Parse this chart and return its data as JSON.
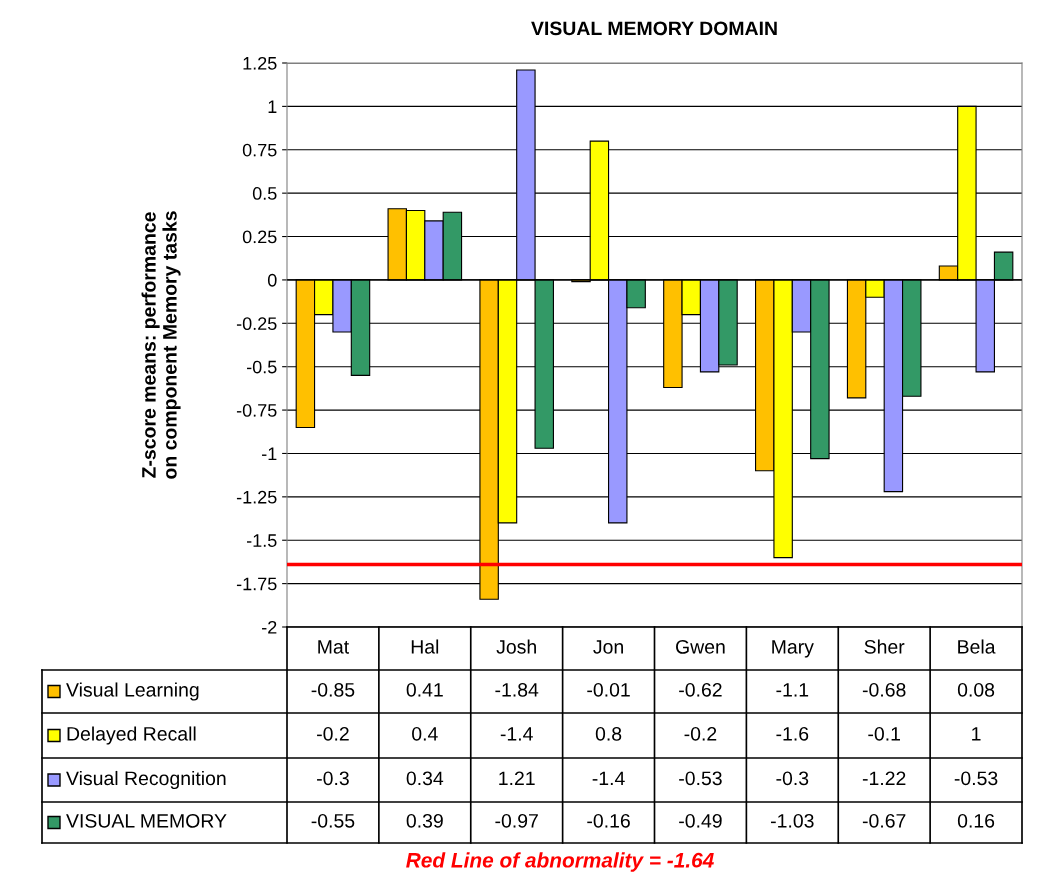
{
  "chart_data": {
    "type": "bar",
    "title": "VISUAL MEMORY DOMAIN",
    "ylabel": "Z-score means: performance\non component Memory tasks",
    "categories": [
      "Mat",
      "Hal",
      "Josh",
      "Jon",
      "Gwen",
      "Mary",
      "Sher",
      "Bela"
    ],
    "series": [
      {
        "name": "Visual Learning",
        "color": "#ffc000",
        "values": [
          -0.85,
          0.41,
          -1.84,
          -0.01,
          -0.62,
          -1.1,
          -0.68,
          0.08
        ]
      },
      {
        "name": "Delayed Recall",
        "color": "#ffff00",
        "values": [
          -0.2,
          0.4,
          -1.4,
          0.8,
          -0.2,
          -1.6,
          -0.1,
          1
        ]
      },
      {
        "name": "Visual Recognition",
        "color": "#9999ff",
        "values": [
          -0.3,
          0.34,
          1.21,
          -1.4,
          -0.53,
          -0.3,
          -1.22,
          -0.53
        ]
      },
      {
        "name": "VISUAL MEMORY",
        "color": "#339966",
        "values": [
          -0.55,
          0.39,
          -0.97,
          -0.16,
          -0.49,
          -1.03,
          -0.67,
          0.16
        ]
      }
    ],
    "ylim": [
      -2,
      1.25
    ],
    "yticks": [
      -2,
      -1.75,
      -1.5,
      -1.25,
      -1,
      -0.75,
      -0.5,
      -0.25,
      0,
      0.25,
      0.5,
      0.75,
      1,
      1.25
    ],
    "grid": "y",
    "legend": "bottom",
    "data_labels": true,
    "ref_lines": [
      {
        "axis": "y",
        "value": -1.64,
        "color": "#ff0000"
      }
    ],
    "annotations": [
      "Red Line of abnormality = -1.64"
    ]
  }
}
